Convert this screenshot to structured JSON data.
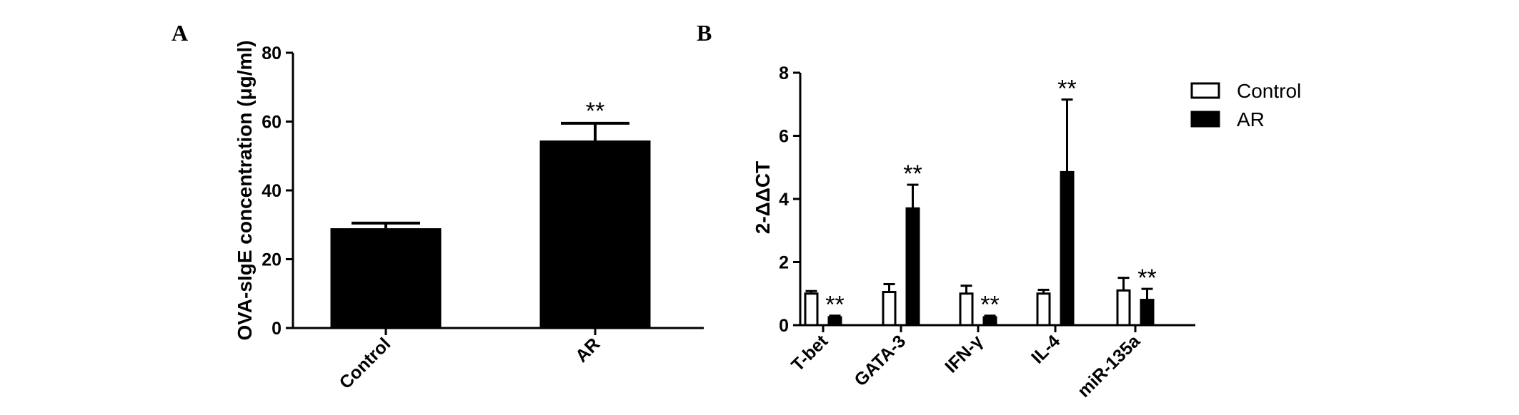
{
  "panels": {
    "a": {
      "letter": "A"
    },
    "b": {
      "letter": "B"
    }
  },
  "chart_data": [
    {
      "type": "bar",
      "ylabel": "OVA-sIgE concentration (μg/ml)",
      "xlabel": "",
      "ylim": [
        0,
        80
      ],
      "yticks": [
        "0",
        "20",
        "40",
        "60",
        "80"
      ],
      "categories": [
        "Control",
        "AR"
      ],
      "values": [
        29,
        54.5
      ],
      "errors": [
        1.5,
        5
      ],
      "significance": [
        "",
        "**"
      ],
      "bar_color": "#000000",
      "grid": false
    },
    {
      "type": "bar",
      "ylabel": "2-ΔΔCT",
      "xlabel": "",
      "ylim": [
        0,
        8
      ],
      "yticks": [
        "0",
        "2",
        "4",
        "6",
        "8"
      ],
      "categories": [
        "T-bet",
        "GATA-3",
        "IFN-γ",
        "IL-4",
        "miR-135a"
      ],
      "series": [
        {
          "name": "Control",
          "color": "#ffffff",
          "values": [
            1.0,
            1.05,
            1.0,
            1.0,
            1.1
          ],
          "errors": [
            0.08,
            0.25,
            0.25,
            0.12,
            0.4
          ],
          "significance": [
            "",
            "",
            "",
            "",
            ""
          ]
        },
        {
          "name": "AR",
          "color": "#000000",
          "values": [
            0.25,
            3.7,
            0.25,
            4.85,
            0.8
          ],
          "errors": [
            0.05,
            0.75,
            0.05,
            2.3,
            0.35
          ],
          "significance": [
            "**",
            "**",
            "**",
            "**",
            "**"
          ]
        }
      ],
      "legend": "top-right",
      "grid": false
    }
  ]
}
